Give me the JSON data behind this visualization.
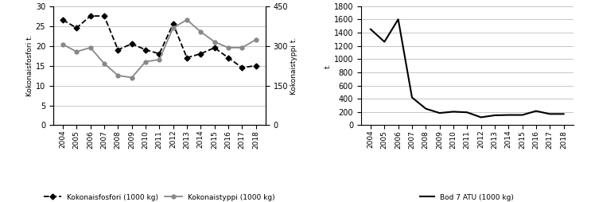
{
  "years": [
    2004,
    2005,
    2006,
    2007,
    2008,
    2009,
    2010,
    2011,
    2012,
    2013,
    2014,
    2015,
    2016,
    2017,
    2018
  ],
  "fosfori": [
    26.5,
    24.5,
    27.5,
    27.5,
    19.0,
    20.5,
    19.0,
    18.0,
    25.5,
    17.0,
    18.0,
    19.5,
    17.0,
    14.5,
    15.0
  ],
  "typpi": [
    305,
    278,
    293,
    233,
    188,
    180,
    240,
    248,
    368,
    398,
    353,
    315,
    293,
    293,
    323
  ],
  "bod": [
    1450,
    1260,
    1600,
    420,
    250,
    185,
    205,
    195,
    120,
    150,
    155,
    155,
    215,
    170,
    170
  ],
  "fosfori_color": "#000000",
  "typpi_color": "#888888",
  "bod_color": "#000000",
  "left_ylabel": "Kokonaisfosfori t.",
  "right_ylabel": "Kokonaistyppi t.",
  "bod_ylabel": "t.",
  "bod_legend": "Bod 7 ATU (1000 kg)",
  "left_ylim": [
    0,
    30
  ],
  "right_ylim": [
    0,
    450
  ],
  "bod_ylim": [
    0,
    1800
  ],
  "left_yticks": [
    0,
    5,
    10,
    15,
    20,
    25,
    30
  ],
  "right_yticks": [
    0,
    150,
    300,
    450
  ],
  "bod_yticks": [
    0,
    200,
    400,
    600,
    800,
    1000,
    1200,
    1400,
    1600,
    1800
  ],
  "legend1_label1": "Kokonaisfosfori (1000 kg)",
  "legend1_label2": "Kokonaistyppi (1000 kg)"
}
